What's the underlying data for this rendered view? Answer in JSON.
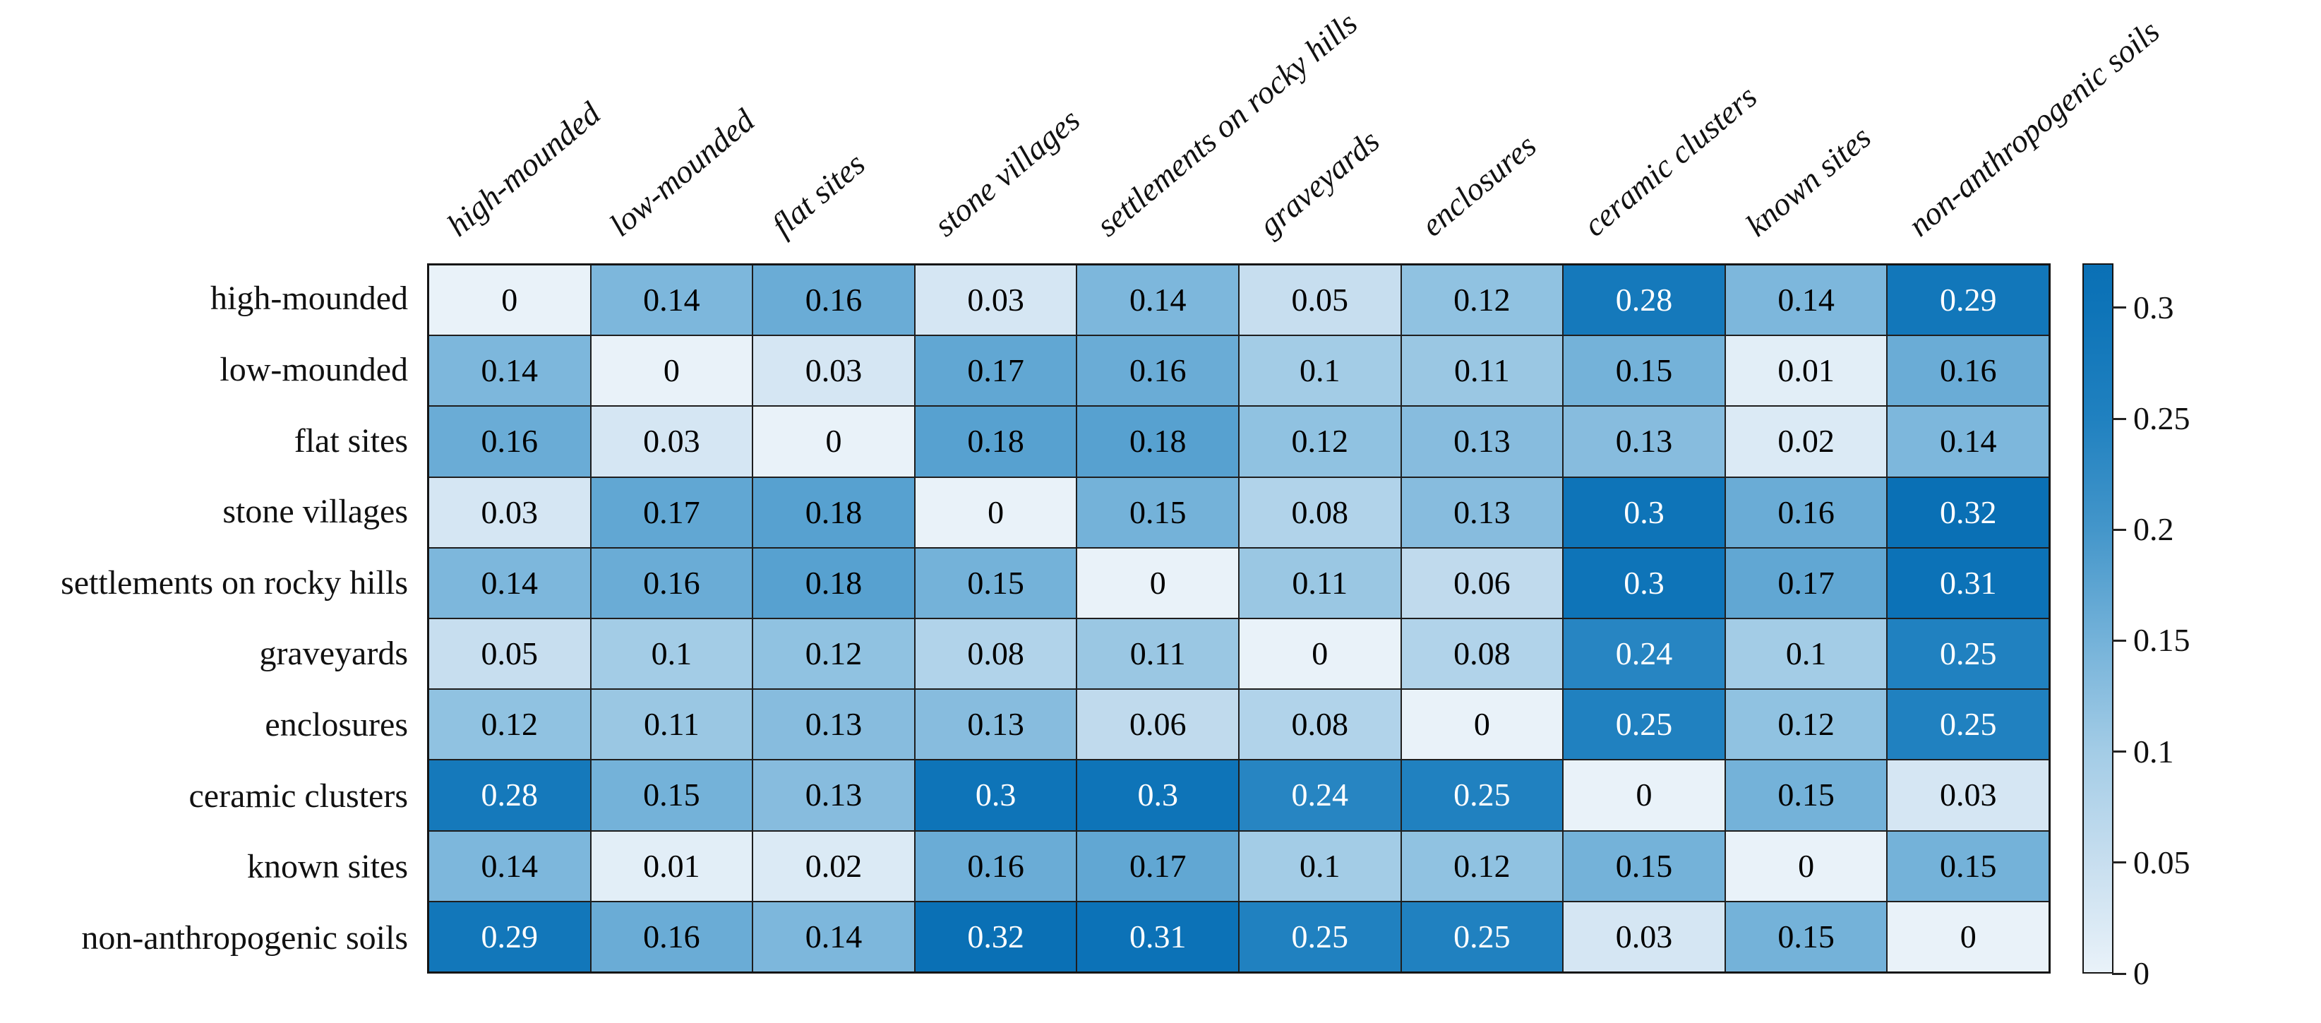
{
  "figure": {
    "background": "#ffffff",
    "title": ""
  },
  "chart_data": {
    "type": "heatmap",
    "title": "",
    "xlabel": "",
    "ylabel": "",
    "categories": [
      "high-mounded",
      "low-mounded",
      "flat sites",
      "stone villages",
      "settlements on rocky hills",
      "graveyards",
      "enclosures",
      "ceramic clusters",
      "known sites",
      "non-anthropogenic soils"
    ],
    "matrix": [
      [
        0,
        0.14,
        0.16,
        0.03,
        0.14,
        0.05,
        0.12,
        0.28,
        0.14,
        0.29
      ],
      [
        0.14,
        0,
        0.03,
        0.17,
        0.16,
        0.1,
        0.11,
        0.15,
        0.01,
        0.16
      ],
      [
        0.16,
        0.03,
        0,
        0.18,
        0.18,
        0.12,
        0.13,
        0.13,
        0.02,
        0.14
      ],
      [
        0.03,
        0.17,
        0.18,
        0,
        0.15,
        0.08,
        0.13,
        0.3,
        0.16,
        0.32
      ],
      [
        0.14,
        0.16,
        0.18,
        0.15,
        0,
        0.11,
        0.06,
        0.3,
        0.17,
        0.31
      ],
      [
        0.05,
        0.1,
        0.12,
        0.08,
        0.11,
        0,
        0.08,
        0.24,
        0.1,
        0.25
      ],
      [
        0.12,
        0.11,
        0.13,
        0.13,
        0.06,
        0.08,
        0,
        0.25,
        0.12,
        0.25
      ],
      [
        0.28,
        0.15,
        0.13,
        0.3,
        0.3,
        0.24,
        0.25,
        0,
        0.15,
        0.03
      ],
      [
        0.14,
        0.01,
        0.02,
        0.16,
        0.17,
        0.1,
        0.12,
        0.15,
        0,
        0.15
      ],
      [
        0.29,
        0.16,
        0.14,
        0.32,
        0.31,
        0.25,
        0.25,
        0.03,
        0.15,
        0
      ]
    ],
    "value_range": [
      0,
      0.32
    ],
    "grid": "on",
    "row_label_style": "upright",
    "col_label_style": "italic-rotated",
    "colorbar": {
      "position": "right",
      "min": 0,
      "max": 0.32,
      "ticks": [
        0,
        0.05,
        0.1,
        0.15,
        0.2,
        0.25,
        0.3
      ],
      "tick_labels": [
        "0",
        "0.05",
        "0.1",
        "0.15",
        "0.2",
        "0.25",
        "0.3"
      ]
    },
    "colormap_stops": [
      [
        0,
        "#e9f2f9"
      ],
      [
        0.05,
        "#c7deef"
      ],
      [
        0.1,
        "#a3cce6"
      ],
      [
        0.15,
        "#74b2d9"
      ],
      [
        0.2,
        "#4496ca"
      ],
      [
        0.25,
        "#2081c0"
      ],
      [
        0.3,
        "#0e74b8"
      ],
      [
        0.32,
        "#0a70b5"
      ]
    ],
    "white_text_threshold": 0.2,
    "cell_text_color_light_cells": "#000000",
    "cell_text_color_dark_cells": "#ffffff",
    "grid_line_color": "#1e1e1e",
    "border_color": "#151515"
  }
}
